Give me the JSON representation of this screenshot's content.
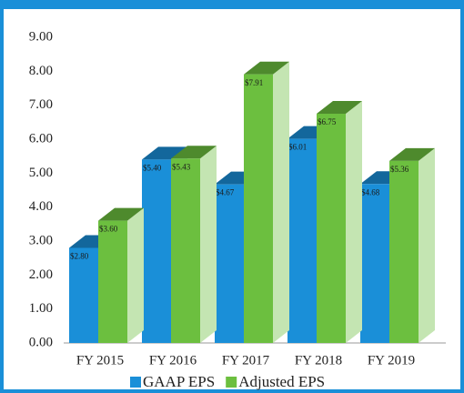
{
  "chart_data": {
    "type": "bar3d",
    "categories": [
      "FY 2015",
      "FY 2016",
      "FY 2017",
      "FY 2018",
      "FY 2019"
    ],
    "series": [
      {
        "name": "GAAP EPS",
        "color": "#1a8fd8",
        "values": [
          2.8,
          5.4,
          4.67,
          6.01,
          4.68
        ],
        "value_labels": [
          "$2.80",
          "$5.40",
          "$4.67",
          "$6.01",
          "$4.68"
        ]
      },
      {
        "name": "Adjusted EPS",
        "color": "#6cbf3f",
        "values": [
          3.6,
          5.43,
          7.91,
          6.75,
          5.36
        ],
        "value_labels": [
          "$3.60",
          "$5.43",
          "$7.91",
          "$6.75",
          "$5.36"
        ]
      }
    ],
    "ylim": [
      0,
      9
    ],
    "yticks": [
      {
        "value": 0,
        "label": "0.00"
      },
      {
        "value": 1,
        "label": "1.00"
      },
      {
        "value": 2,
        "label": "2.00"
      },
      {
        "value": 3,
        "label": "3.00"
      },
      {
        "value": 4,
        "label": "4.00"
      },
      {
        "value": 5,
        "label": "5.00"
      },
      {
        "value": 6,
        "label": "6.00"
      },
      {
        "value": 7,
        "label": "7.00"
      },
      {
        "value": 8,
        "label": "8.00"
      },
      {
        "value": 9,
        "label": "9.00"
      }
    ],
    "grid": false,
    "legend": "bottom"
  }
}
